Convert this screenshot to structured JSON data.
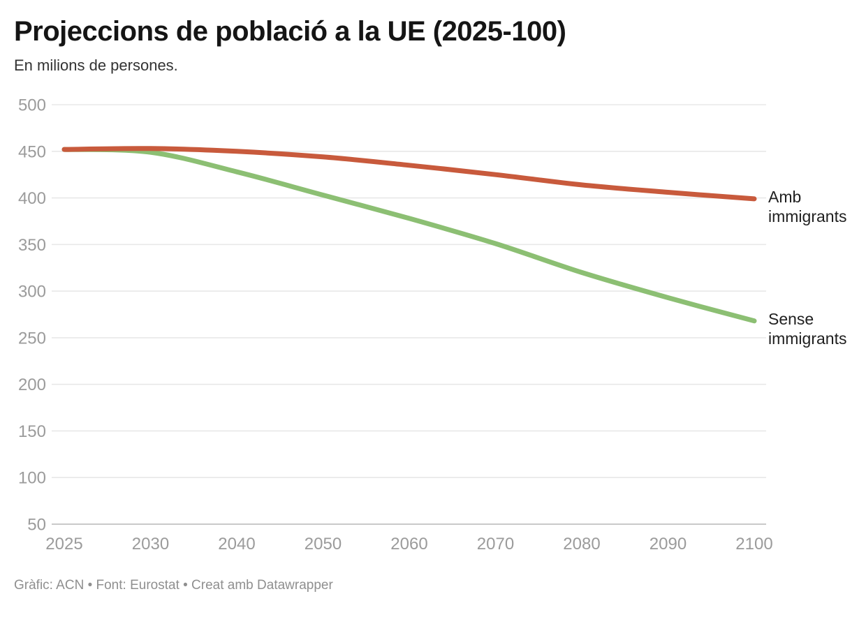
{
  "header": {
    "title": "Projeccions de població a la UE (2025-100)",
    "subtitle": "En milions de persones."
  },
  "footer": {
    "credit": "Gràfic: ACN • Font: Eurostat • Creat amb Datawrapper"
  },
  "chart_data": {
    "type": "line",
    "title": "Projeccions de població a la UE (2025-100)",
    "subtitle": "En milions de persones.",
    "unit": "milions de persones",
    "categories": [
      "2025",
      "2030",
      "2040",
      "2050",
      "2060",
      "2070",
      "2080",
      "2090",
      "2100"
    ],
    "x_spacing": "even-categorical",
    "series": [
      {
        "name": "Amb immigrants",
        "label_lines": [
          "Amb",
          "immigrants"
        ],
        "color": "#c85a3c",
        "values": [
          452,
          453,
          450,
          444,
          435,
          425,
          414,
          406,
          399
        ]
      },
      {
        "name": "Sense immigrants",
        "label_lines": [
          "Sense",
          "immigrants"
        ],
        "color": "#8cbf73",
        "values": [
          452,
          449,
          428,
          403,
          378,
          351,
          320,
          293,
          268
        ]
      }
    ],
    "y_ticks": [
      500,
      450,
      400,
      350,
      300,
      250,
      200,
      150,
      100,
      50
    ],
    "ylim": [
      50,
      500
    ],
    "grid": "horizontal",
    "legend_position": "line-end-labels"
  }
}
